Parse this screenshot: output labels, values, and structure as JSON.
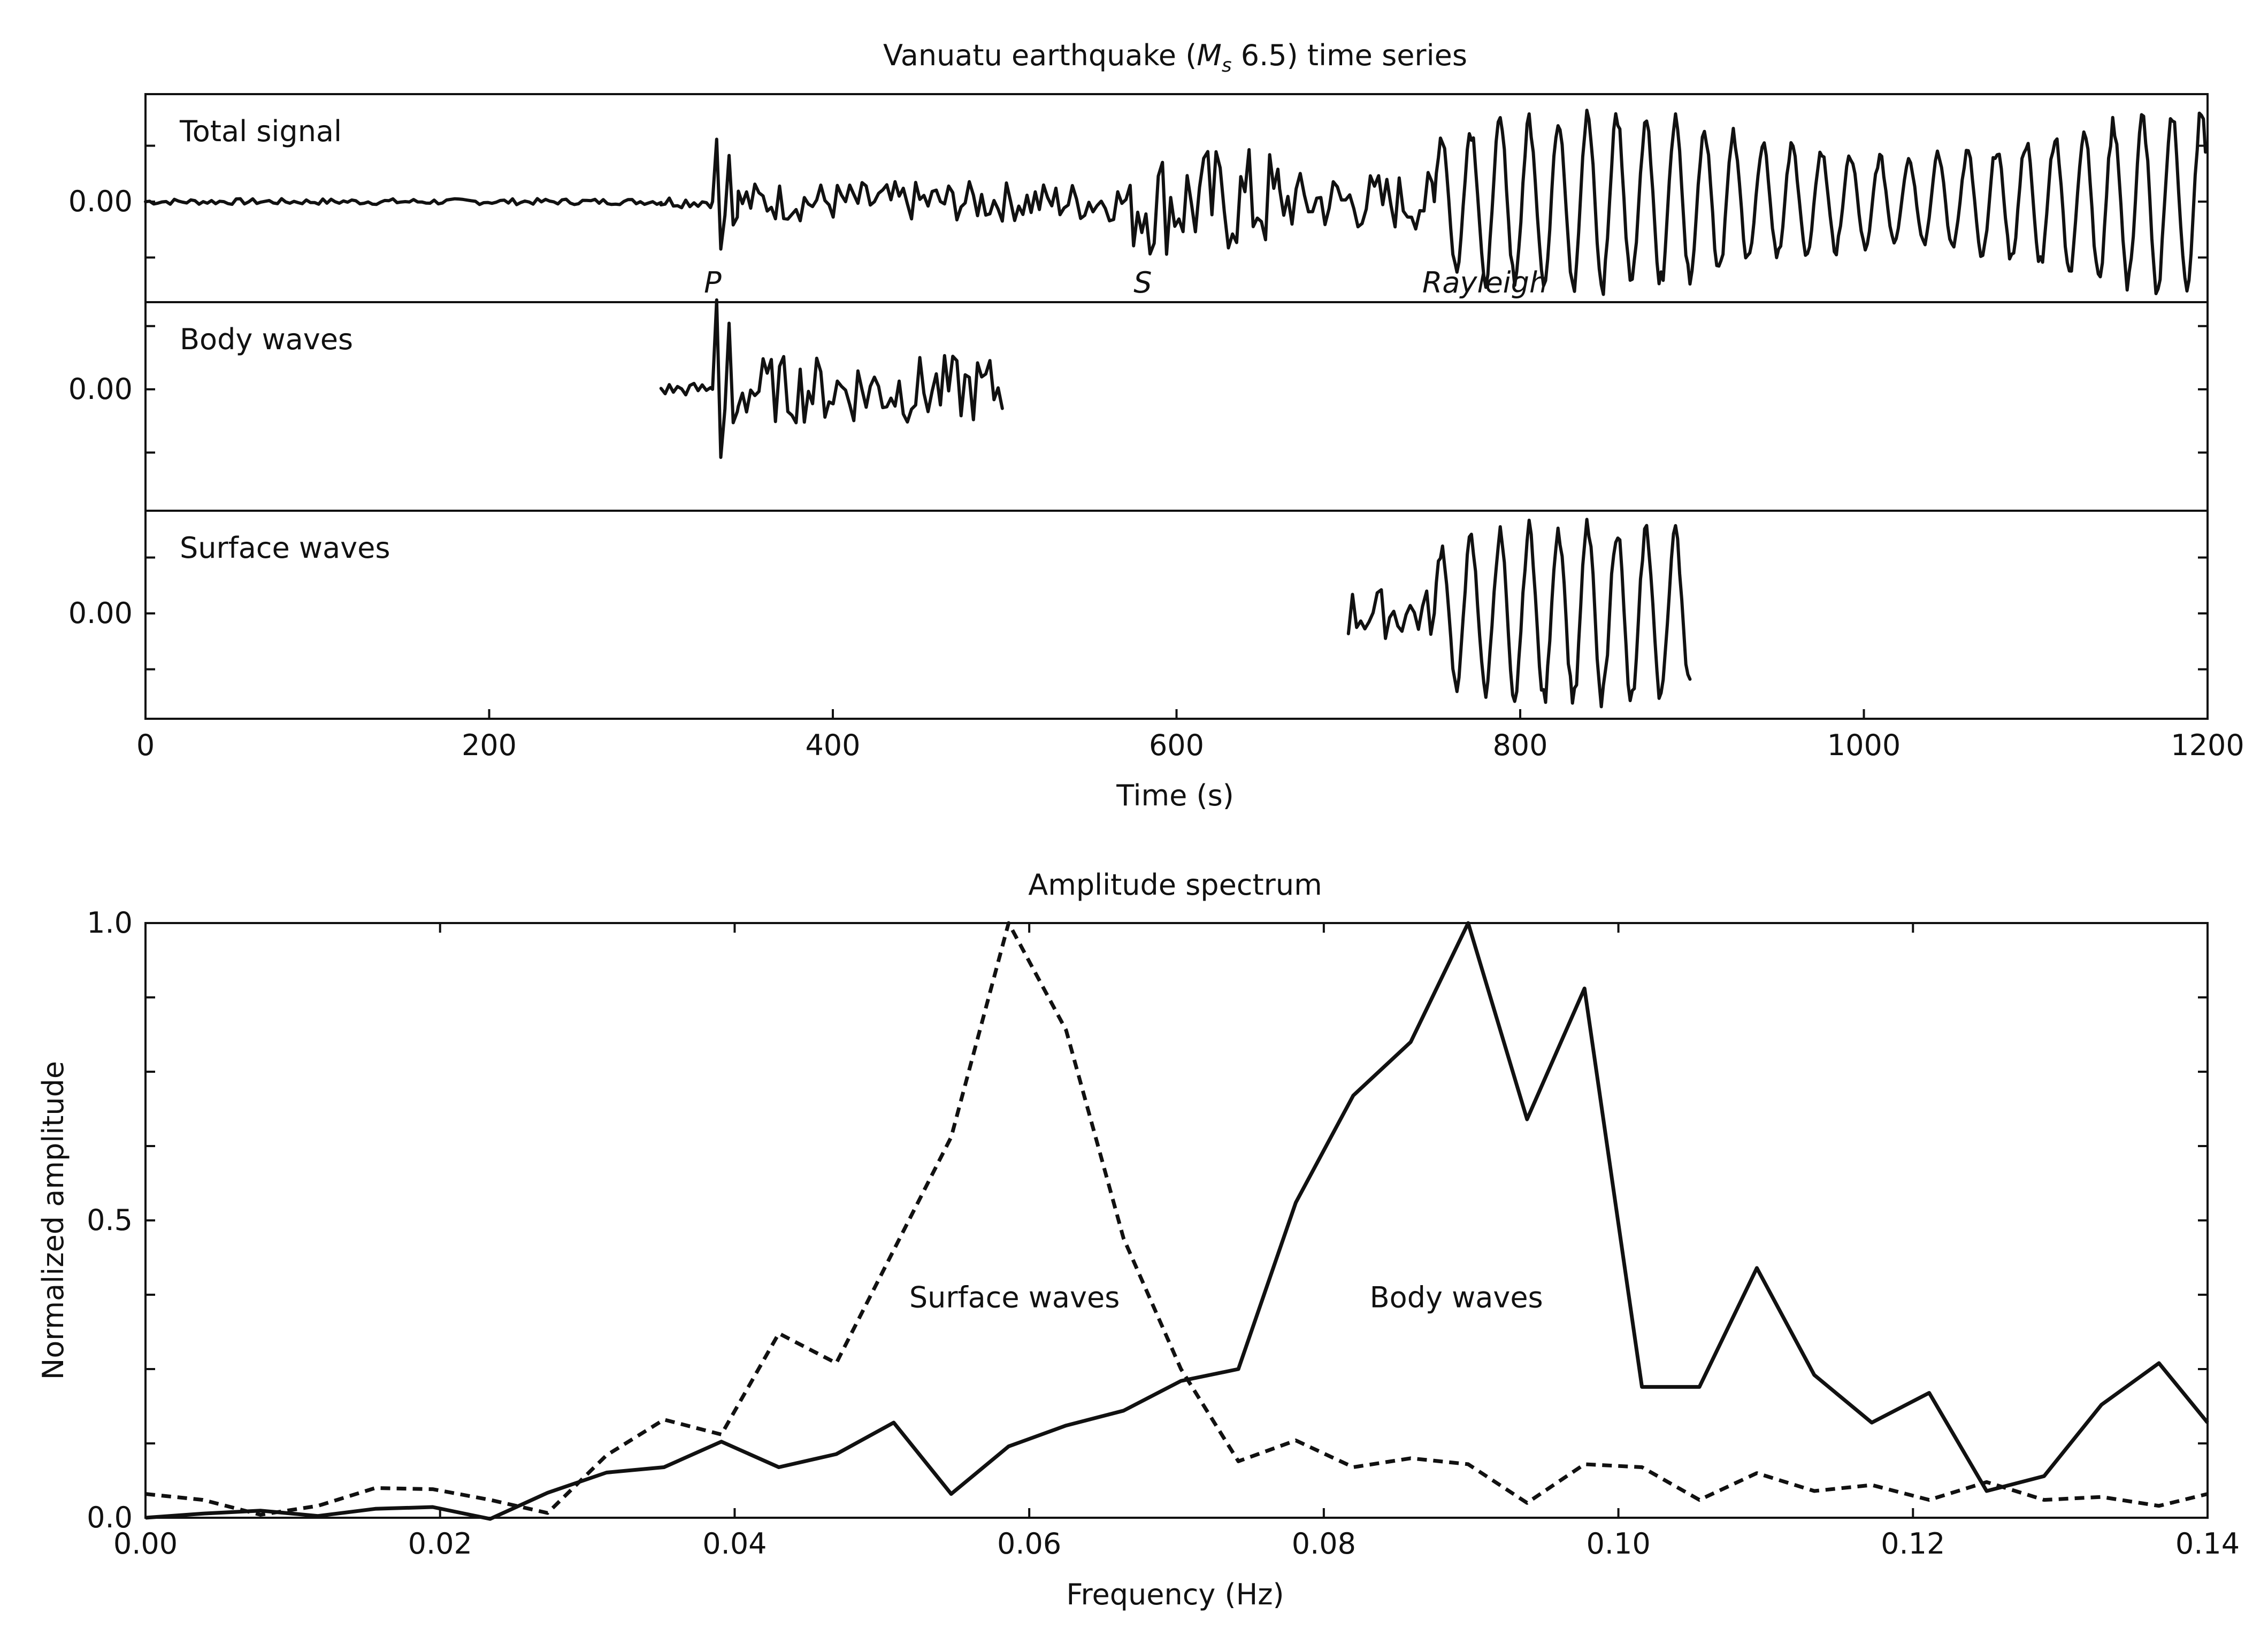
{
  "chart_data": [
    {
      "type": "line",
      "title_pre": "Vanuatu earthquake (",
      "title_sym": "M",
      "title_sub": "s",
      "title_post": " 6.5) time series",
      "xlabel": "Time (s)",
      "xlim": [
        0,
        1200
      ],
      "xticks": [
        "0",
        "200",
        "400",
        "600",
        "800",
        "1000",
        "1200"
      ],
      "ytick_label": "0.00",
      "grid": false,
      "panels": [
        {
          "label": "Total signal",
          "phase_labels": [
            {
              "text": "P",
              "t": 325
            },
            {
              "text": "S",
              "t": 575
            },
            {
              "text": "Rayleigh",
              "t": 743
            }
          ],
          "segments": [
            {
              "t_start": 0,
              "t_end": 300,
              "kind": "noise",
              "amplitude": 0.03
            },
            {
              "t_start": 300,
              "t_end": 330,
              "kind": "noise",
              "amplitude": 0.06
            },
            {
              "t_start": 330,
              "t_end": 345,
              "kind": "pulse",
              "amplitude": 0.75
            },
            {
              "t_start": 345,
              "t_end": 575,
              "kind": "noise",
              "amplitude": 0.2
            },
            {
              "t_start": 575,
              "t_end": 660,
              "kind": "noise",
              "amplitude": 0.55
            },
            {
              "t_start": 660,
              "t_end": 750,
              "kind": "noise",
              "amplitude": 0.3
            },
            {
              "t_start": 750,
              "t_end": 1200,
              "kind": "oscillation",
              "amplitude": 0.85,
              "period_s": 17
            }
          ]
        },
        {
          "label": "Body waves",
          "segments": [
            {
              "t_start": 300,
              "t_end": 330,
              "kind": "noise",
              "amplitude": 0.06
            },
            {
              "t_start": 330,
              "t_end": 345,
              "kind": "pulse",
              "amplitude": 0.95
            },
            {
              "t_start": 345,
              "t_end": 500,
              "kind": "noise",
              "amplitude": 0.3
            }
          ]
        },
        {
          "label": "Surface waves",
          "segments": [
            {
              "t_start": 700,
              "t_end": 750,
              "kind": "noise",
              "amplitude": 0.25
            },
            {
              "t_start": 750,
              "t_end": 900,
              "kind": "oscillation",
              "amplitude": 0.85,
              "period_s": 17
            }
          ]
        }
      ]
    },
    {
      "type": "line",
      "title": "Amplitude spectrum",
      "xlabel": "Frequency (Hz)",
      "ylabel": "Normalized amplitude",
      "xlim": [
        0,
        0.14
      ],
      "ylim": [
        0,
        1.0
      ],
      "xticks": [
        "0.00",
        "0.02",
        "0.04",
        "0.06",
        "0.08",
        "0.10",
        "0.12",
        "0.14"
      ],
      "yticks": [
        "0.0",
        "0.5",
        "1.0"
      ],
      "grid": false,
      "annotations": [
        {
          "text": "Surface waves",
          "x": 0.059,
          "y": 0.37
        },
        {
          "text": "Body waves",
          "x": 0.089,
          "y": 0.37
        }
      ],
      "series": [
        {
          "label_ref": "Body waves",
          "style": "solid",
          "x": [
            0.0,
            0.0039,
            0.0078,
            0.0117,
            0.0156,
            0.0195,
            0.0234,
            0.0273,
            0.0313,
            0.0352,
            0.0391,
            0.043,
            0.0469,
            0.0508,
            0.0547,
            0.0586,
            0.0625,
            0.0664,
            0.0703,
            0.0742,
            0.0781,
            0.082,
            0.0859,
            0.0898,
            0.0938,
            0.0977,
            0.1016,
            0.1055,
            0.1094,
            0.1133,
            0.1172,
            0.1211,
            0.125,
            0.1289,
            0.1328,
            0.1367,
            0.14
          ],
          "y": [
            0.0,
            0.007,
            0.012,
            0.003,
            0.015,
            0.018,
            -0.002,
            0.042,
            0.076,
            0.085,
            0.128,
            0.085,
            0.107,
            0.16,
            0.04,
            0.12,
            0.155,
            0.18,
            0.23,
            0.25,
            0.53,
            0.71,
            0.8,
            1.0,
            0.67,
            0.89,
            0.22,
            0.22,
            0.42,
            0.24,
            0.16,
            0.21,
            0.045,
            0.07,
            0.19,
            0.26,
            0.16
          ]
        },
        {
          "label_ref": "Surface waves",
          "style": "dashed",
          "x": [
            0.0,
            0.0039,
            0.0078,
            0.0117,
            0.0156,
            0.0195,
            0.0234,
            0.0273,
            0.0313,
            0.0352,
            0.0391,
            0.043,
            0.0469,
            0.0508,
            0.0547,
            0.0586,
            0.0625,
            0.0664,
            0.0703,
            0.0742,
            0.0781,
            0.082,
            0.0859,
            0.0898,
            0.0938,
            0.0977,
            0.1016,
            0.1055,
            0.1094,
            0.1133,
            0.1172,
            0.1211,
            0.125,
            0.1289,
            0.1328,
            0.1367,
            0.14
          ],
          "y": [
            0.04,
            0.03,
            0.005,
            0.02,
            0.05,
            0.048,
            0.03,
            0.008,
            0.105,
            0.165,
            0.14,
            0.31,
            0.26,
            0.45,
            0.64,
            1.0,
            0.82,
            0.47,
            0.25,
            0.095,
            0.13,
            0.085,
            0.1,
            0.09,
            0.025,
            0.09,
            0.085,
            0.03,
            0.075,
            0.045,
            0.055,
            0.03,
            0.06,
            0.03,
            0.035,
            0.02,
            0.04
          ]
        }
      ]
    }
  ]
}
